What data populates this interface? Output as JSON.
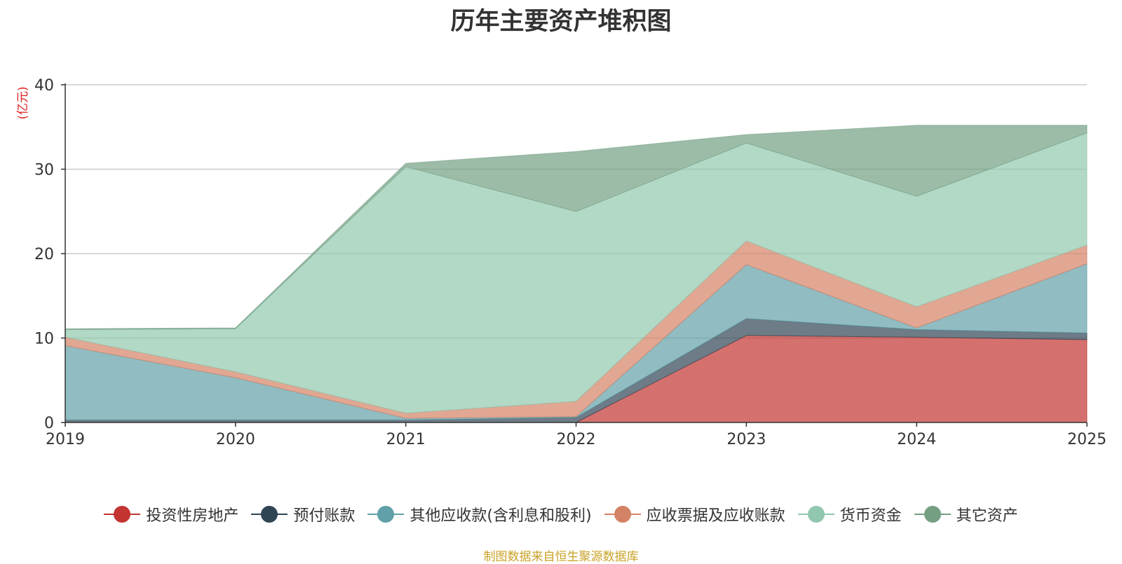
{
  "chart_data": {
    "type": "area",
    "stacked": true,
    "title": "历年主要资产堆积图",
    "ylabel": "(亿元)",
    "xlabel": "",
    "x": [
      "2019",
      "2020",
      "2021",
      "2022",
      "2023",
      "2024",
      "2025"
    ],
    "ylim": [
      0,
      40
    ],
    "yticks": [
      0,
      10,
      20,
      30,
      40
    ],
    "grid": true,
    "legend_position": "bottom",
    "series": [
      {
        "name": "投资性房地产",
        "color": "#c23531",
        "values": [
          0,
          0,
          0,
          0,
          10.3,
          10.1,
          9.8
        ]
      },
      {
        "name": "预付账款",
        "color": "#2f4554",
        "values": [
          0.3,
          0.3,
          0.3,
          0.6,
          2.0,
          0.9,
          0.8
        ]
      },
      {
        "name": "其他应收款(含利息和股利)",
        "color": "#61a0a8",
        "values": [
          8.8,
          5.0,
          0.2,
          0.1,
          6.4,
          0.2,
          8.2
        ]
      },
      {
        "name": "应收票据及应收账款",
        "color": "#d48265",
        "values": [
          1.0,
          0.7,
          0.6,
          1.8,
          2.8,
          2.5,
          2.2
        ]
      },
      {
        "name": "货币资金",
        "color": "#91c7ae",
        "values": [
          0.9,
          5.1,
          29.2,
          22.5,
          11.6,
          13.1,
          13.3
        ]
      },
      {
        "name": "其它资产",
        "color": "#749f83",
        "values": [
          0.1,
          0.1,
          0.4,
          7.1,
          1.0,
          8.4,
          0.9
        ]
      }
    ]
  },
  "footer": {
    "source": "制图数据来自恒生聚源数据库"
  }
}
